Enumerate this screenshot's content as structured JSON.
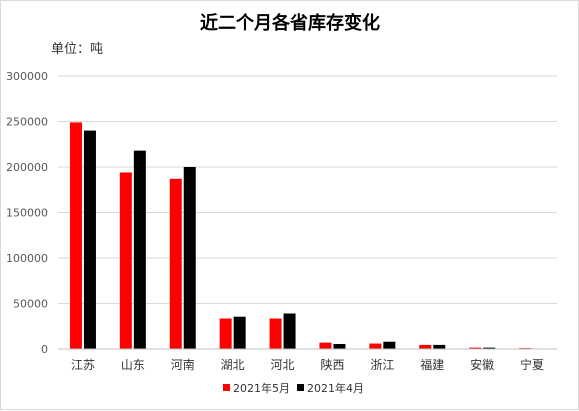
{
  "chart_data": {
    "type": "bar",
    "title": "近二个月各省库存变化",
    "unit_label": "单位：吨",
    "categories": [
      "江苏",
      "山东",
      "河南",
      "湖北",
      "河北",
      "陕西",
      "浙江",
      "福建",
      "安徽",
      "宁夏"
    ],
    "series": [
      {
        "name": "2021年5月",
        "color": "#ff0000",
        "values": [
          249000,
          194000,
          187000,
          33500,
          33500,
          7000,
          6000,
          4500,
          1500,
          1000
        ]
      },
      {
        "name": "2021年4月",
        "color": "#000000",
        "values": [
          240000,
          218000,
          200000,
          35500,
          39000,
          5500,
          8000,
          4500,
          1500,
          0
        ]
      }
    ],
    "ylim": [
      0,
      300000
    ],
    "yticks": [
      "0",
      "50000",
      "100000",
      "150000",
      "200000",
      "250000",
      "300000"
    ],
    "grid": true,
    "legend_position": "bottom"
  }
}
